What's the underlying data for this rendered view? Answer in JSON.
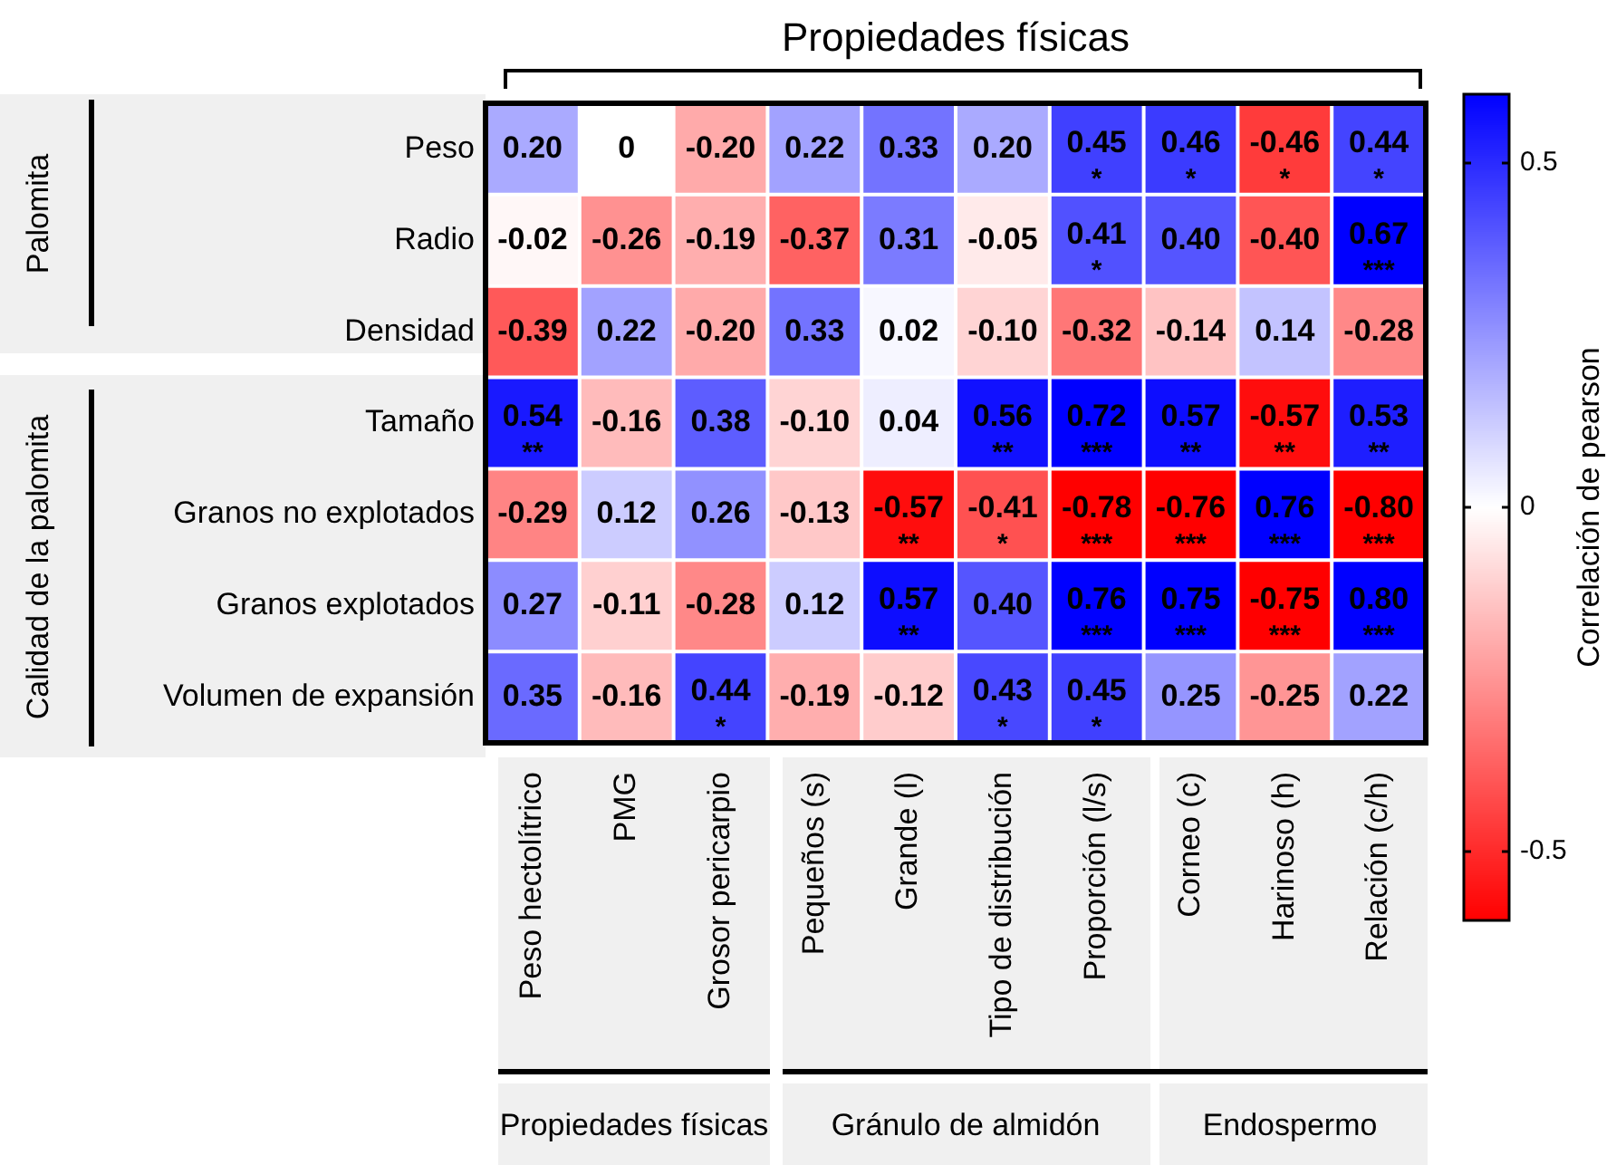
{
  "chart_data": {
    "type": "heatmap",
    "title": "Propiedades físicas",
    "clabel": "Correlación de pearson",
    "categories": [
      "Peso hectolítrico",
      "PMG",
      "Grosor pericarpio",
      "Pequeños (s)",
      "Grande (l)",
      "Tipo de distribución",
      "Proporción (l/s)",
      "Corneo (c)",
      "Harinoso (h)",
      "Relación (c/h)"
    ],
    "y_categories": [
      "Peso",
      "Radio",
      "Densidad",
      "Tamaño",
      "Granos no explotados",
      "Granos explotados",
      "Volumen de expansión"
    ],
    "cells": [
      [
        0.2,
        0,
        -0.2,
        0.22,
        0.33,
        0.2,
        0.45,
        0.46,
        -0.46,
        0.44
      ],
      [
        -0.02,
        -0.26,
        -0.19,
        -0.37,
        0.31,
        -0.05,
        0.41,
        0.4,
        -0.4,
        0.67
      ],
      [
        -0.39,
        0.22,
        -0.2,
        0.33,
        0.02,
        -0.1,
        -0.32,
        -0.14,
        0.14,
        -0.28
      ],
      [
        0.54,
        -0.16,
        0.38,
        -0.1,
        0.04,
        0.56,
        0.72,
        0.57,
        -0.57,
        0.53
      ],
      [
        -0.29,
        0.12,
        0.26,
        -0.13,
        -0.57,
        -0.41,
        -0.78,
        -0.76,
        0.76,
        -0.8
      ],
      [
        0.27,
        -0.11,
        -0.28,
        0.12,
        0.57,
        0.4,
        0.76,
        0.75,
        -0.75,
        0.8
      ],
      [
        0.35,
        -0.16,
        0.44,
        -0.19,
        -0.12,
        0.43,
        0.45,
        0.25,
        -0.25,
        0.22
      ]
    ],
    "cell_labels": [
      [
        "0.20",
        "0",
        "-0.20",
        "0.22",
        "0.33",
        "0.20",
        "0.45\n*",
        "0.46\n*",
        "-0.46\n*",
        "0.44\n*"
      ],
      [
        "-0.02",
        "-0.26",
        "-0.19",
        "-0.37",
        "0.31",
        "-0.05",
        "0.41\n*",
        "0.40",
        "-0.40",
        "0.67\n***"
      ],
      [
        "-0.39",
        "0.22",
        "-0.20",
        "0.33",
        "0.02",
        "-0.10",
        "-0.32",
        "-0.14",
        "0.14",
        "-0.28"
      ],
      [
        "0.54\n**",
        "-0.16",
        "0.38",
        "-0.10",
        "0.04",
        "0.56\n**",
        "0.72\n***",
        "0.57\n**",
        "-0.57\n**",
        "0.53\n**"
      ],
      [
        "-0.29",
        "0.12",
        "0.26",
        "-0.13",
        "-0.57\n**",
        "-0.41\n*",
        "-0.78\n***",
        "-0.76\n***",
        "0.76\n***",
        "-0.80\n***"
      ],
      [
        "0.27",
        "-0.11",
        "-0.28",
        "0.12",
        "0.57\n**",
        "0.40",
        "0.76\n***",
        "0.75\n***",
        "-0.75\n***",
        "0.80\n***"
      ],
      [
        "0.35",
        "-0.16",
        "0.44\n*",
        "-0.19",
        "-0.12",
        "0.43\n*",
        "0.45\n*",
        "0.25",
        "-0.25",
        "0.22"
      ]
    ],
    "clim": [
      -0.6,
      0.6
    ],
    "cticks": [
      -0.5,
      0,
      0.5
    ],
    "annotations": [
      "Propiedades físicas",
      "Gránulo de almidón",
      "Endospermo",
      "Palomita",
      "Calidad de la palomita"
    ]
  }
}
